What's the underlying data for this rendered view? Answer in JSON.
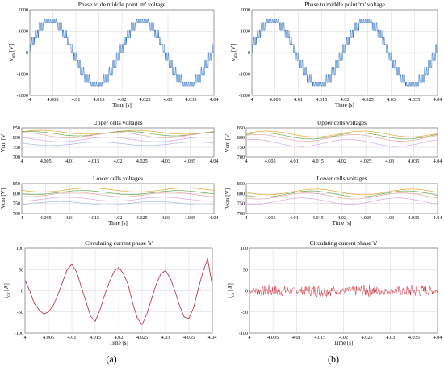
{
  "figure": {
    "label_a": "(a)",
    "label_b": "(b)"
  },
  "colors": {
    "voltage": "#2f6fbf",
    "current_a": "#b8283a",
    "current_b": "#cc2a3a",
    "cell1": "#6aa84f",
    "cell2": "#e6a532",
    "cell3": "#d4a6e0",
    "cell4": "#a9b8ee",
    "cell5": "#e8a4a4",
    "grid": "#d6d6d6"
  },
  "chart_data": [
    {
      "id": "a-voltage",
      "type": "line",
      "title": "Phase to de middle point 'm' voltage",
      "xlabel": "Time [s]",
      "ylabel": "v_cm [V]",
      "ylabel_main": "v",
      "ylabel_sub": "cm",
      "xlim": [
        4,
        4.04
      ],
      "ylim": [
        -2000,
        2000
      ],
      "xticks": [
        4,
        4.005,
        4.01,
        4.015,
        4.02,
        4.025,
        4.03,
        4.035,
        4.04
      ],
      "xtick_labels": [
        "4",
        "4.005",
        "4.01",
        "4.015",
        "4.02",
        "4.025",
        "4.03",
        "4.035",
        "4.04"
      ],
      "yticks": [
        -2000,
        -1000,
        0,
        1000,
        2000
      ],
      "ytick_labels": [
        "-2000",
        "-1000",
        "0",
        "1000",
        "2000"
      ],
      "grid": true,
      "series": [
        {
          "kind": "pwm",
          "frequency_hz": 50,
          "peak": 1550,
          "step": 350
        }
      ]
    },
    {
      "id": "a-upper",
      "type": "line",
      "title": "Upper cells voltages",
      "xlabel": "",
      "ylabel": "Vcm [V]",
      "xlim": [
        4,
        4.04
      ],
      "ylim": [
        700,
        850
      ],
      "xticks": [
        4,
        4.005,
        4.01,
        4.015,
        4.02,
        4.025,
        4.03,
        4.035,
        4.04
      ],
      "xtick_labels": [
        "4",
        "4.005",
        "4.01",
        "4.015",
        "4.02",
        "4.025",
        "4.03",
        "4.035",
        "4.04"
      ],
      "yticks": [
        700,
        750,
        800,
        850
      ],
      "ytick_labels": [
        "700",
        "750",
        "800",
        "850"
      ],
      "grid": true,
      "series": [
        {
          "offset": 827,
          "amp": 10,
          "phase": 0.4,
          "color_key": "cell2"
        },
        {
          "offset": 820,
          "amp": 12,
          "phase": 1.0,
          "color_key": "cell1"
        },
        {
          "offset": 812,
          "amp": 14,
          "phase": 1.6,
          "color_key": "cell5"
        },
        {
          "offset": 790,
          "amp": 12,
          "phase": 2.2,
          "color_key": "cell3"
        },
        {
          "offset": 768,
          "amp": 9,
          "phase": 2.8,
          "color_key": "cell4"
        }
      ]
    },
    {
      "id": "a-lower",
      "type": "line",
      "title": "Lower cells voltages",
      "xlabel": "Time [s]",
      "ylabel": "Vcm [V]",
      "xlim": [
        4,
        4.04
      ],
      "ylim": [
        700,
        850
      ],
      "xticks": [
        4,
        4.005,
        4.01,
        4.015,
        4.02,
        4.025,
        4.03,
        4.035,
        4.04
      ],
      "xtick_labels": [
        "4",
        "4.005",
        "4.01",
        "4.015",
        "4.02",
        "4.025",
        "4.03",
        "4.035",
        "4.04"
      ],
      "yticks": [
        700,
        750,
        800,
        850
      ],
      "ytick_labels": [
        "700",
        "750",
        "800",
        "850"
      ],
      "grid": true,
      "series": [
        {
          "offset": 818,
          "amp": 10,
          "phase": 3.4,
          "color_key": "cell2"
        },
        {
          "offset": 805,
          "amp": 10,
          "phase": 3.9,
          "color_key": "cell1"
        },
        {
          "offset": 795,
          "amp": 11,
          "phase": 4.4,
          "color_key": "cell5"
        },
        {
          "offset": 772,
          "amp": 10,
          "phase": 4.9,
          "color_key": "cell3"
        },
        {
          "offset": 752,
          "amp": 8,
          "phase": 5.4,
          "color_key": "cell4"
        }
      ]
    },
    {
      "id": "a-current",
      "type": "line",
      "title": "Circulating current phase 'a'",
      "xlabel": "Time [s]",
      "ylabel": "i_cir [A]",
      "ylabel_main": "i",
      "ylabel_sub": "cir",
      "xlim": [
        4,
        4.04
      ],
      "ylim": [
        -100,
        100
      ],
      "xticks": [
        4,
        4.005,
        4.01,
        4.015,
        4.02,
        4.025,
        4.03,
        4.035,
        4.04
      ],
      "xtick_labels": [
        "4",
        "4.005",
        "4.01",
        "4.015",
        "4.02",
        "4.025",
        "4.03",
        "4.035",
        "4.04"
      ],
      "yticks": [
        -100,
        -50,
        0,
        50,
        100
      ],
      "ytick_labels": [
        "-100",
        "-50",
        "0",
        "50",
        "100"
      ],
      "grid": true,
      "series": [
        {
          "kind": "points",
          "color_key": "current_a",
          "x": [
            4,
            4.001,
            4.002,
            4.003,
            4.004,
            4.005,
            4.006,
            4.007,
            4.008,
            4.009,
            4.01,
            4.011,
            4.012,
            4.013,
            4.014,
            4.015,
            4.016,
            4.017,
            4.018,
            4.019,
            4.02,
            4.021,
            4.022,
            4.023,
            4.024,
            4.025,
            4.026,
            4.027,
            4.028,
            4.029,
            4.03,
            4.031,
            4.032,
            4.033,
            4.034,
            4.035,
            4.036,
            4.037,
            4.038,
            4.039,
            4.04
          ],
          "y": [
            25,
            0,
            -30,
            -45,
            -55,
            -50,
            -35,
            -10,
            20,
            50,
            62,
            45,
            10,
            -25,
            -60,
            -72,
            -45,
            -10,
            20,
            45,
            55,
            40,
            15,
            -30,
            -65,
            -80,
            -55,
            -20,
            15,
            40,
            48,
            30,
            0,
            -35,
            -62,
            -65,
            -40,
            5,
            45,
            75,
            12
          ]
        }
      ]
    },
    {
      "id": "b-voltage",
      "type": "line",
      "title": "Phase to middle point 'm' voltage",
      "xlabel": "Time [s]",
      "ylabel": "v_cm [V]",
      "ylabel_main": "v",
      "ylabel_sub": "cm",
      "xlim": [
        4,
        4.04
      ],
      "ylim": [
        -2000,
        2000
      ],
      "xticks": [
        4,
        4.005,
        4.01,
        4.015,
        4.02,
        4.025,
        4.03,
        4.035,
        4.04
      ],
      "xtick_labels": [
        "4",
        "4.005",
        "4.01",
        "4.015",
        "4.02",
        "4.025",
        "4.03",
        "4.035",
        "4.04"
      ],
      "yticks": [
        -2000,
        -1000,
        0,
        1000,
        2000
      ],
      "ytick_labels": [
        "-2000",
        "-1000",
        "0",
        "1000",
        "2000"
      ],
      "grid": true,
      "series": [
        {
          "kind": "pwm",
          "frequency_hz": 50,
          "peak": 1550,
          "step": 350
        }
      ]
    },
    {
      "id": "b-upper",
      "type": "line",
      "title": "Upper cells voltages",
      "xlabel": "",
      "ylabel": "Vcm [V]",
      "xlim": [
        4,
        4.04
      ],
      "ylim": [
        700,
        850
      ],
      "xticks": [
        4,
        4.005,
        4.01,
        4.015,
        4.02,
        4.025,
        4.03,
        4.035,
        4.04
      ],
      "xtick_labels": [
        "4",
        "4.005",
        "4.01",
        "4.015",
        "4.02",
        "4.025",
        "4.03",
        "4.035",
        "4.04"
      ],
      "yticks": [
        700,
        750,
        800,
        850
      ],
      "ytick_labels": [
        "700",
        "750",
        "800",
        "850"
      ],
      "grid": true,
      "series": [
        {
          "offset": 818,
          "amp": 15,
          "phase": 0.2,
          "color_key": "cell2"
        },
        {
          "offset": 808,
          "amp": 16,
          "phase": 0.5,
          "color_key": "cell1"
        },
        {
          "offset": 798,
          "amp": 17,
          "phase": 0.8,
          "color_key": "cell5"
        },
        {
          "offset": 772,
          "amp": 18,
          "phase": 1.1,
          "color_key": "cell3"
        }
      ]
    },
    {
      "id": "b-lower",
      "type": "line",
      "title": "Lower cells voltages",
      "xlabel": "Time [s]",
      "ylabel": "Vcm [V]",
      "xlim": [
        4,
        4.04
      ],
      "ylim": [
        700,
        850
      ],
      "xticks": [
        4,
        4.005,
        4.01,
        4.015,
        4.02,
        4.025,
        4.03,
        4.035,
        4.04
      ],
      "xtick_labels": [
        "4",
        "4.005",
        "4.01",
        "4.015",
        "4.02",
        "4.025",
        "4.03",
        "4.035",
        "4.04"
      ],
      "yticks": [
        700,
        750,
        800,
        850
      ],
      "ytick_labels": [
        "700",
        "750",
        "800",
        "850"
      ],
      "grid": true,
      "series": [
        {
          "offset": 808,
          "amp": 14,
          "phase": 3.3,
          "color_key": "cell2"
        },
        {
          "offset": 798,
          "amp": 15,
          "phase": 3.6,
          "color_key": "cell1"
        },
        {
          "offset": 788,
          "amp": 15,
          "phase": 3.9,
          "color_key": "cell5"
        },
        {
          "offset": 762,
          "amp": 16,
          "phase": 4.2,
          "color_key": "cell3"
        }
      ]
    },
    {
      "id": "b-current",
      "type": "line",
      "title": "Circulating current phase 'a'",
      "xlabel": "Time [s]",
      "ylabel": "i_cir [A]",
      "ylabel_main": "i",
      "ylabel_sub": "cir",
      "xlim": [
        4,
        4.04
      ],
      "ylim": [
        -100,
        100
      ],
      "xticks": [
        4,
        4.005,
        4.01,
        4.015,
        4.02,
        4.025,
        4.03,
        4.035,
        4.04
      ],
      "xtick_labels": [
        "4",
        "4.005",
        "4.01",
        "4.015",
        "4.02",
        "4.025",
        "4.03",
        "4.035",
        "4.04"
      ],
      "yticks": [
        -100,
        -50,
        0,
        50,
        100
      ],
      "ytick_labels": [
        "-100",
        "-50",
        "0",
        "50",
        "100"
      ],
      "grid": true,
      "series": [
        {
          "kind": "noise",
          "color_key": "current_b",
          "amplitude": 15
        }
      ]
    }
  ]
}
